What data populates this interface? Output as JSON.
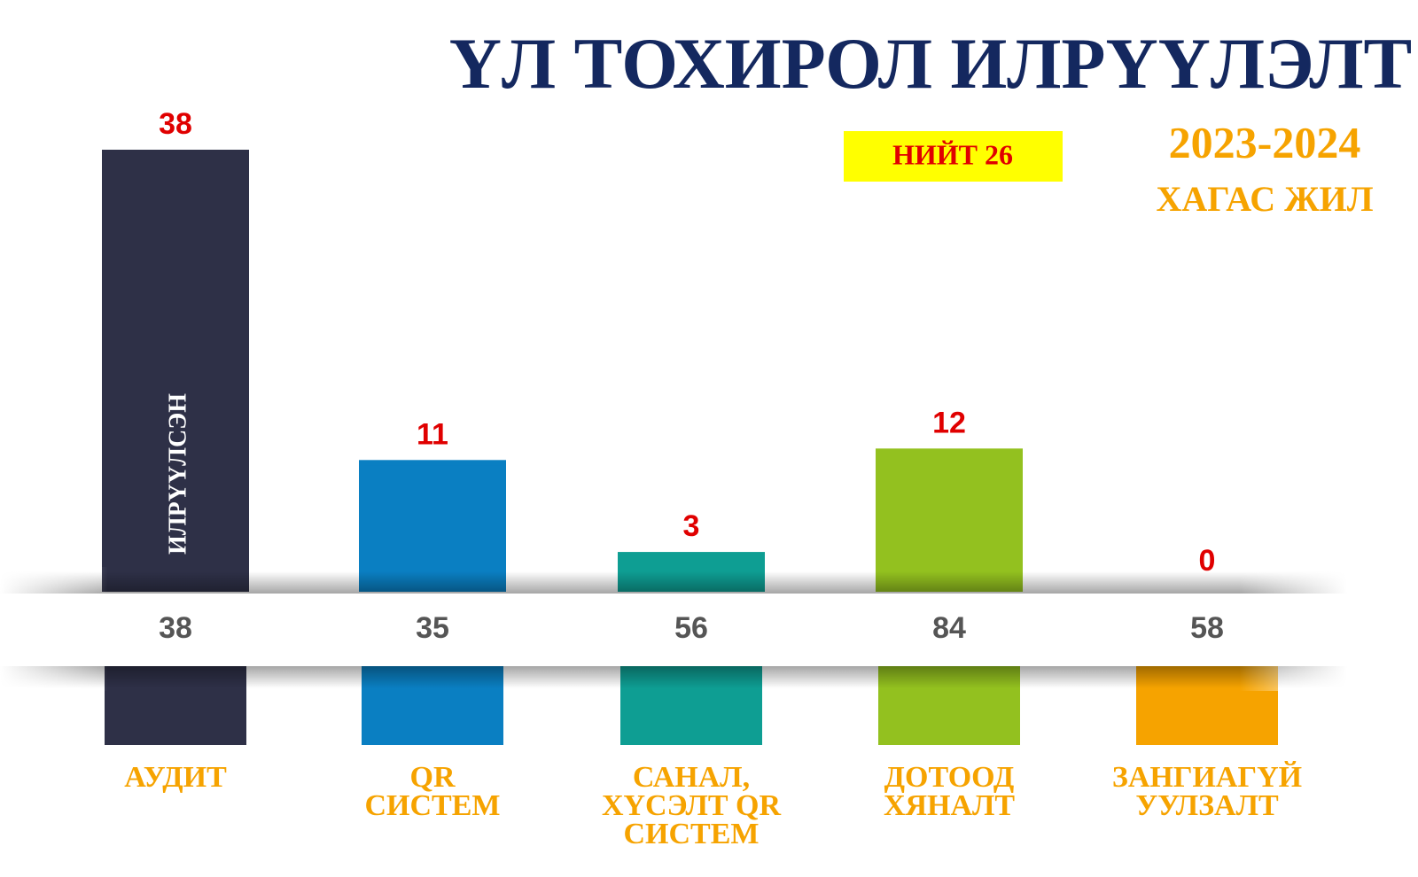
{
  "chart_data": {
    "type": "bar",
    "title": "ҮЛ ТОХИРОЛ ИЛРҮҮЛЭЛТ",
    "total_label": "НИЙТ 26",
    "period": "2023-2024",
    "period_note": "ХАГАС ЖИЛ",
    "categories": [
      "АУДИТ",
      "QR\nСИСТЕМ",
      "САНАЛ,\nХҮСЭЛТ QR\nСИСТЕМ",
      "ДОТООД\nХЯНАЛТ",
      "ЗАНГИАГҮЙ\nУУЛЗАЛТ"
    ],
    "colors": [
      "#2e3047",
      "#0a7fc2",
      "#0e9e93",
      "#93c11f",
      "#f6a300"
    ],
    "series": [
      {
        "name": "ИЛРҮҮЛСЭН",
        "values": [
          38,
          11,
          3,
          12,
          0
        ]
      },
      {
        "values": [
          38,
          35,
          56,
          84,
          58
        ]
      }
    ]
  }
}
